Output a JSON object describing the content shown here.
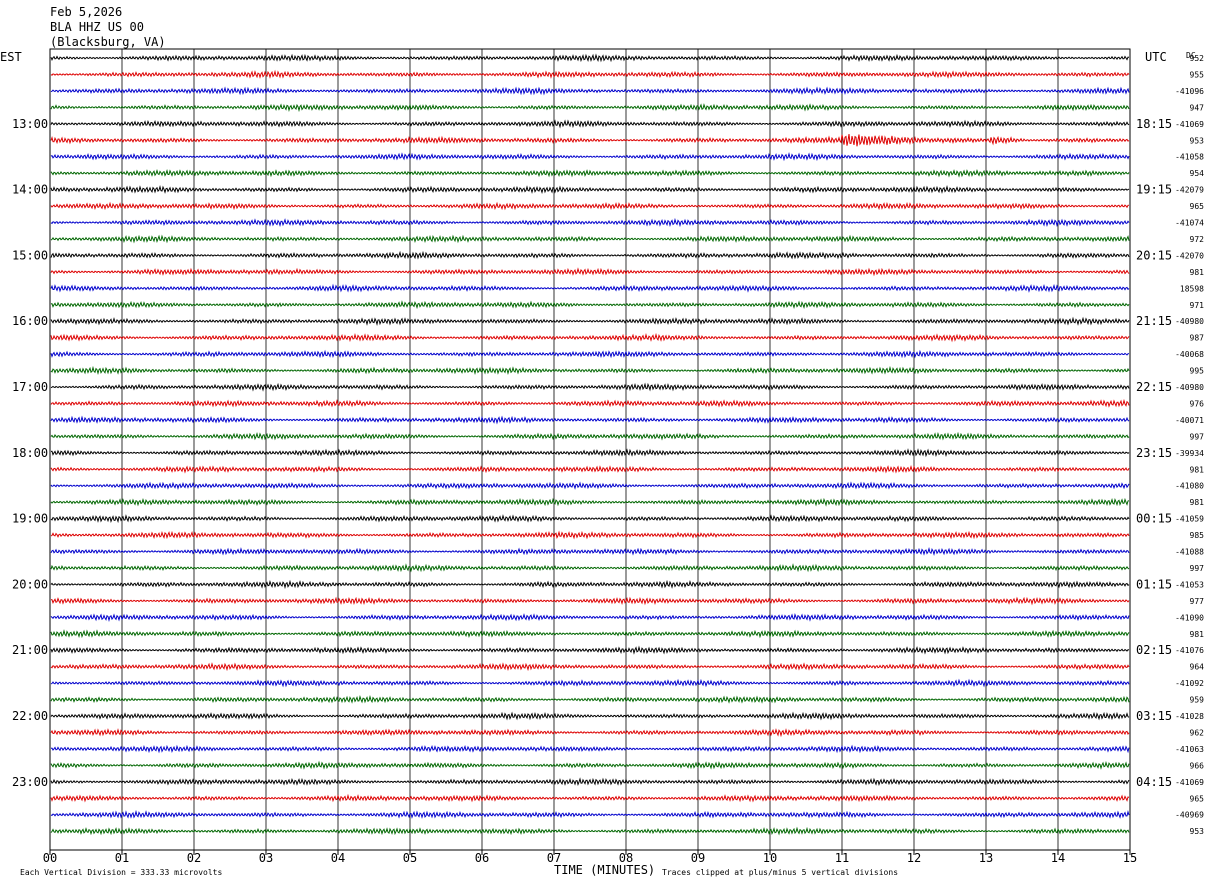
{
  "header": {
    "date": "Feb 5,2026",
    "station": "BLA HHZ US 00",
    "location": "(Blacksburg, VA)"
  },
  "labels": {
    "left_zone": "EST",
    "right_zone": "UTC",
    "dc_header": "DC",
    "x_axis_title": "TIME (MINUTES)",
    "scale_note": "Each Vertical Division =  333.33 microvolts",
    "clip_note": "Traces clipped at plus/minus 5 vertical divisions"
  },
  "colors": {
    "trace_cycle": [
      "#000000",
      "#dd0000",
      "#0000cc",
      "#006600"
    ],
    "grid": "#000000"
  },
  "chart_data": {
    "type": "line",
    "title": "BLA HHZ US 00 (Blacksburg, VA) Feb 5,2026",
    "xlabel": "TIME (MINUTES)",
    "x_ticks": [
      "00",
      "01",
      "02",
      "03",
      "04",
      "05",
      "06",
      "07",
      "08",
      "09",
      "10",
      "11",
      "12",
      "13",
      "14",
      "15"
    ],
    "xlim": [
      0,
      15
    ],
    "minutes_per_trace": 15,
    "traces_per_hour": 4,
    "est_hour_labels": [
      "13:00",
      "14:00",
      "15:00",
      "16:00",
      "17:00",
      "18:00",
      "19:00",
      "20:00",
      "21:00",
      "22:00",
      "23:00"
    ],
    "utc_hour_labels": [
      "18:15",
      "19:15",
      "20:15",
      "21:15",
      "22:15",
      "23:15",
      "00:15",
      "01:15",
      "02:15",
      "03:15",
      "04:15"
    ],
    "first_hour_label_row": 4,
    "dc_offsets": [
      "952",
      "955",
      "-41096",
      "947",
      "-41069",
      "953",
      "-41058",
      "954",
      "-42079",
      "965",
      "-41074",
      "972",
      "-42070",
      "981",
      "18598",
      "971",
      "-40980",
      "987",
      "-40068",
      "995",
      "-40980",
      "976",
      "-40071",
      "997",
      "-39934",
      "981",
      "-41080",
      "981",
      "-41059",
      "985",
      "-41088",
      "997",
      "-41053",
      "977",
      "-41090",
      "981",
      "-41076",
      "964",
      "-41092",
      "959",
      "-41028",
      "962",
      "-41063",
      "966",
      "-41069",
      "965",
      "-40969",
      "953"
    ],
    "amplitude_note": "continuous background noise of roughly 1.5 vertical divisions on all traces; clipped at plus/minus 5 divisions",
    "events": [
      {
        "trace": 5,
        "minute": 11.0,
        "duration_min": 1.3,
        "amplitude_div": 5
      },
      {
        "trace": 5,
        "minute": 13.05,
        "duration_min": 0.5,
        "amplitude_div": 3
      }
    ]
  }
}
